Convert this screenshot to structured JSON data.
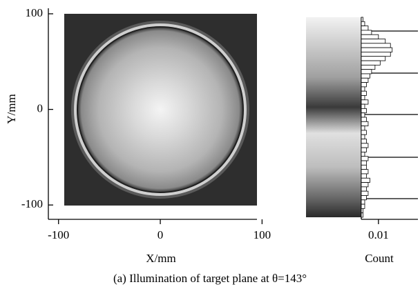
{
  "chart_data": [
    {
      "type": "image",
      "xlabel": "X/mm",
      "ylabel": "Y/mm",
      "xlim": [
        -110,
        95
      ],
      "ylim": [
        -115,
        100
      ],
      "xticks": [
        -100,
        0,
        100
      ],
      "yticks": [
        -100,
        0,
        100
      ]
    },
    {
      "type": "histogram",
      "xlabel": "Count",
      "xlim": [
        0,
        0.033
      ],
      "xticks": [
        0.01
      ],
      "values": [
        0.001,
        0.002,
        0.004,
        0.006,
        0.01,
        0.014,
        0.017,
        0.018,
        0.017,
        0.014,
        0.011,
        0.008,
        0.006,
        0.005,
        0.004,
        0.003,
        0.002,
        0.003,
        0.002,
        0.004,
        0.002,
        0.003,
        0.002,
        0.003,
        0.004,
        0.002,
        0.003,
        0.002,
        0.003,
        0.004,
        0.003,
        0.002,
        0.004,
        0.003,
        0.003,
        0.004,
        0.003,
        0.005,
        0.004,
        0.003,
        0.004,
        0.003,
        0.002,
        0.002,
        0.001,
        0.001
      ]
    }
  ],
  "caption": "(a) Illumination of target plane at θ=143°"
}
